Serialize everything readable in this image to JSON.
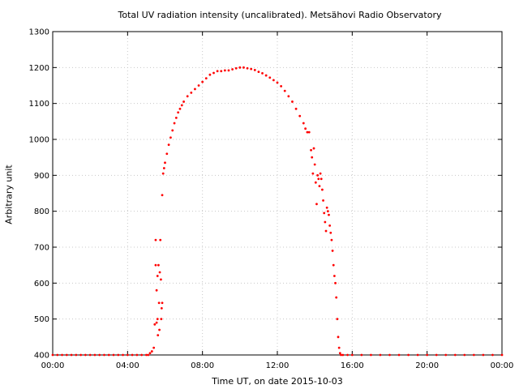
{
  "chart_data": {
    "type": "scatter",
    "title": "Total UV radiation intensity (uncalibrated). Metsähovi Radio Observatory",
    "xlabel": "Time UT, on date 2015-10-03",
    "ylabel": "Arbitrary unit",
    "xlim": [
      0,
      24
    ],
    "ylim": [
      400,
      1300
    ],
    "x_tick_values": [
      0,
      4,
      8,
      12,
      16,
      20,
      24
    ],
    "x_tick_labels": [
      "00:00",
      "04:00",
      "08:00",
      "12:00",
      "16:00",
      "20:00",
      "00:00"
    ],
    "y_ticks": [
      400,
      500,
      600,
      700,
      800,
      900,
      1000,
      1100,
      1200,
      1300
    ],
    "grid": true,
    "marker_color": "#ff0000",
    "series": [
      {
        "x": [
          0,
          0.25,
          0.5,
          0.75,
          1,
          1.25,
          1.5,
          1.75,
          2,
          2.25,
          2.5,
          2.75,
          3,
          3.25,
          3.5,
          3.75,
          4,
          4.25,
          4.5,
          4.75,
          5,
          5.1,
          5.2,
          5.3,
          5.4,
          5.45,
          5.5,
          5.5,
          5.55,
          5.55,
          5.6,
          5.6,
          5.62,
          5.65,
          5.68,
          5.7,
          5.72,
          5.75,
          5.78,
          5.8,
          5.82,
          5.85,
          5.85,
          5.9,
          5.95,
          6,
          6.1,
          6.2,
          6.3,
          6.4,
          6.5,
          6.6,
          6.7,
          6.8,
          6.9,
          7,
          7.2,
          7.4,
          7.6,
          7.8,
          8,
          8.2,
          8.4,
          8.6,
          8.8,
          9,
          9.2,
          9.4,
          9.6,
          9.8,
          10,
          10.2,
          10.4,
          10.6,
          10.8,
          11,
          11.2,
          11.4,
          11.6,
          11.8,
          12,
          12.2,
          12.4,
          12.6,
          12.8,
          13,
          13.2,
          13.4,
          13.5,
          13.6,
          13.7,
          13.8,
          13.85,
          13.9,
          13.95,
          14,
          14.05,
          14.1,
          14.15,
          14.2,
          14.25,
          14.3,
          14.35,
          14.4,
          14.45,
          14.5,
          14.55,
          14.6,
          14.65,
          14.7,
          14.75,
          14.8,
          14.85,
          14.9,
          14.95,
          15,
          15.05,
          15.1,
          15.15,
          15.2,
          15.25,
          15.3,
          15.35,
          15.4,
          15.5,
          15.75,
          16,
          16.5,
          17,
          17.5,
          18,
          18.5,
          19,
          19.5,
          20,
          20.5,
          21,
          21.5,
          22,
          22.5,
          23,
          23.5,
          24
        ],
        "y": [
          400,
          400,
          400,
          400,
          400,
          400,
          400,
          400,
          400,
          400,
          400,
          400,
          400,
          400,
          400,
          400,
          400,
          400,
          400,
          400,
          400,
          400,
          405,
          410,
          420,
          485,
          650,
          720,
          580,
          490,
          620,
          500,
          455,
          650,
          545,
          470,
          630,
          720,
          610,
          500,
          530,
          545,
          845,
          905,
          920,
          935,
          960,
          985,
          1005,
          1025,
          1045,
          1060,
          1075,
          1085,
          1095,
          1105,
          1120,
          1130,
          1140,
          1150,
          1160,
          1170,
          1180,
          1185,
          1190,
          1190,
          1192,
          1192,
          1195,
          1198,
          1200,
          1200,
          1198,
          1196,
          1193,
          1188,
          1184,
          1178,
          1172,
          1165,
          1158,
          1148,
          1135,
          1120,
          1105,
          1085,
          1065,
          1045,
          1030,
          1020,
          1020,
          970,
          950,
          905,
          975,
          930,
          880,
          820,
          900,
          890,
          870,
          905,
          890,
          860,
          830,
          795,
          770,
          745,
          810,
          800,
          790,
          760,
          740,
          720,
          690,
          650,
          620,
          600,
          560,
          500,
          450,
          420,
          405,
          400,
          400,
          400,
          400,
          400,
          400,
          400,
          400,
          400,
          400,
          400,
          400,
          400,
          400,
          400,
          400,
          400,
          400,
          400,
          400
        ]
      }
    ]
  }
}
